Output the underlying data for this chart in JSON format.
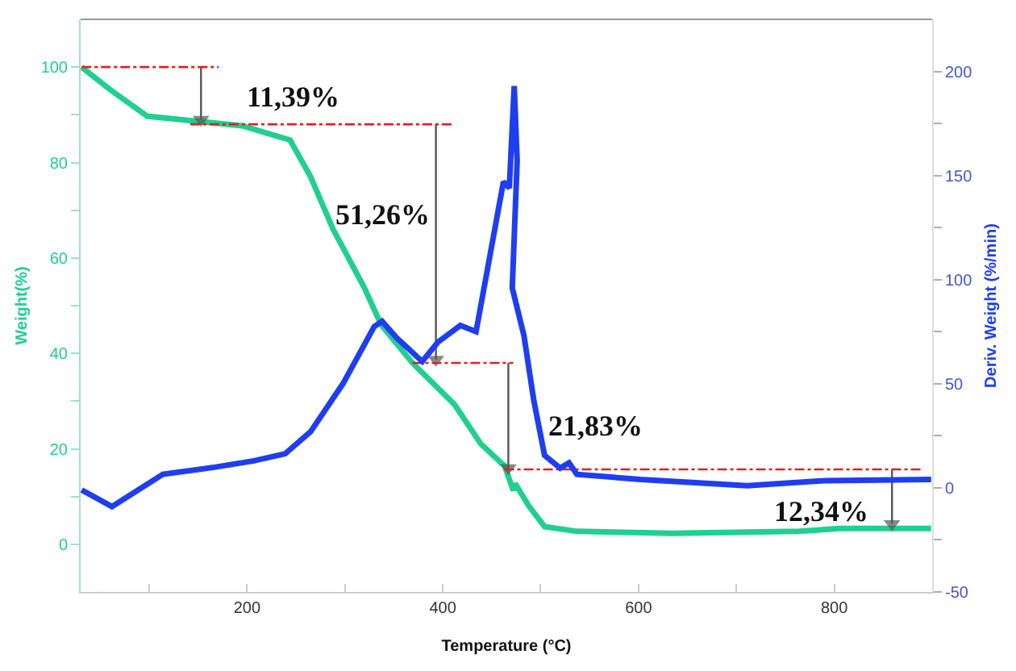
{
  "chart_data": {
    "type": "line",
    "xlabel": "Temperature (°C)",
    "ylabel": "Weight(%)",
    "y2label": "Deriv. Weight (%/min)",
    "xlim": [
      30,
      900
    ],
    "xticks": [
      {
        "value": 100,
        "label": null
      },
      200,
      {
        "value": 300,
        "label": null
      },
      400,
      {
        "value": 500,
        "label": null
      },
      600,
      {
        "value": 700,
        "label": null
      },
      800
    ],
    "ylim": [
      -10,
      110
    ],
    "yticks": [
      0,
      {
        "value": 10,
        "label": null
      },
      20,
      {
        "value": 30,
        "label": null
      },
      40,
      {
        "value": 50,
        "label": null
      },
      60,
      {
        "value": 70,
        "label": null
      },
      80,
      {
        "value": 90,
        "label": null
      },
      100
    ],
    "y2lim": [
      -50,
      225
    ],
    "y2ticks": [
      -50,
      {
        "value": -25,
        "label": null
      },
      0,
      {
        "value": 25,
        "label": null
      },
      50,
      {
        "value": 75,
        "label": null
      },
      100,
      {
        "value": 125,
        "label": null
      },
      150,
      {
        "value": 175,
        "label": null
      },
      200
    ],
    "series": [
      {
        "color": "#1fd08e",
        "x": [
          31,
          60,
          98,
          146,
          195,
          244,
          265,
          288,
          320,
          337,
          369,
          412,
          439,
          460,
          463,
          472,
          474,
          488,
          504,
          537,
          634,
          764,
          805,
          899
        ],
        "values": [
          100,
          95.3,
          89.7,
          88.7,
          87.7,
          84.7,
          77,
          66,
          53.7,
          46,
          38,
          29.3,
          21,
          17,
          16.5,
          11.3,
          12.7,
          8,
          3.7,
          2.7,
          2.3,
          2.7,
          3.3,
          3.3
        ]
      },
      {
        "axis": "y2",
        "color": "#1f3ef0",
        "x": [
          31,
          62,
          114,
          168,
          207,
          239,
          265,
          298,
          330,
          338,
          353,
          379,
          395,
          418,
          434,
          462,
          468,
          473,
          476,
          471,
          483,
          493,
          504,
          520,
          529,
          537,
          602,
          711,
          792,
          899
        ],
        "values": [
          -1,
          -9,
          6.5,
          10,
          13,
          16.4,
          27,
          50,
          77.5,
          80,
          72,
          60.7,
          70,
          78,
          75,
          147,
          144,
          193,
          157,
          96,
          73,
          42,
          15.6,
          9.5,
          12,
          6.5,
          4,
          1,
          3.5,
          4
        ]
      },
      {
        "color": "#dd2222",
        "line_style": "dashdot",
        "x": [
          31,
          171
        ],
        "values": [
          100,
          100
        ]
      },
      {
        "color": "#dd2222",
        "line_style": "dashdot",
        "x": [
          142,
          412
        ],
        "values": [
          88,
          88
        ]
      },
      {
        "color": "#dd2222",
        "line_style": "dashdot",
        "x": [
          369,
          472
        ],
        "values": [
          38,
          38
        ]
      },
      {
        "color": "#dd2222",
        "line_style": "dashdot",
        "x": [
          463,
          890
        ],
        "values": [
          15.7,
          15.7
        ]
      },
      {
        "color": "#555555",
        "marker": "triangle",
        "x": [
          153,
          153
        ],
        "values": [
          100,
          89
        ]
      },
      {
        "color": "#555555",
        "marker": "triangle",
        "x": [
          393,
          393
        ],
        "values": [
          88,
          38.7
        ]
      },
      {
        "color": "#555555",
        "marker": "triangle",
        "x": [
          467,
          467
        ],
        "values": [
          38,
          16
        ]
      },
      {
        "color": "#555555",
        "marker": "triangle",
        "x": [
          859,
          859
        ],
        "values": [
          15.7,
          4.3
        ]
      }
    ],
    "annotations": [
      "11,39%",
      "51,26%",
      "21,83%",
      "12,34%"
    ]
  }
}
